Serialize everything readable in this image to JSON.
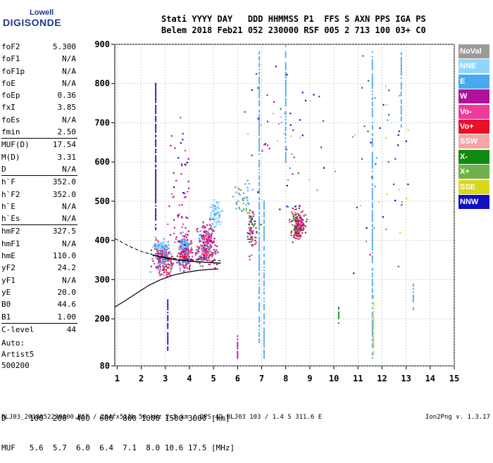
{
  "logo": {
    "top": "Lowell",
    "main": "DIGISONDE"
  },
  "header": {
    "line1": "Stati YYYY DAY   DDD HHMMSS P1  FFS S AXN PPS IGA PS",
    "line2": "Belem 2018 Feb21 052 230000 RSF 005 2 713 100 03+ C0"
  },
  "params": [
    {
      "name": "foF2",
      "value": "5.300"
    },
    {
      "name": "foF1",
      "value": "N/A"
    },
    {
      "name": "foF1p",
      "value": "N/A"
    },
    {
      "name": "foE",
      "value": "N/A"
    },
    {
      "name": "foEp",
      "value": "0.36"
    },
    {
      "name": "fxI",
      "value": "3.85"
    },
    {
      "name": "foEs",
      "value": "N/A"
    },
    {
      "name": "fmin",
      "value": "2.50"
    },
    {
      "name": "MUF(D)",
      "value": "17.54",
      "sep": true
    },
    {
      "name": "M(D)",
      "value": "3.31"
    },
    {
      "name": "D",
      "value": "N/A"
    },
    {
      "name": "h`F",
      "value": "352.0",
      "sep": true
    },
    {
      "name": "h`F2",
      "value": "352.0"
    },
    {
      "name": "h`E",
      "value": "N/A"
    },
    {
      "name": "h`Es",
      "value": "N/A"
    },
    {
      "name": "hmF2",
      "value": "327.5",
      "sep": true
    },
    {
      "name": "hmF1",
      "value": "N/A"
    },
    {
      "name": "hmE",
      "value": "110.0"
    },
    {
      "name": "yF2",
      "value": "24.2"
    },
    {
      "name": "yF1",
      "value": "N/A"
    },
    {
      "name": "yE",
      "value": "20.0"
    },
    {
      "name": "B0",
      "value": "44.6"
    },
    {
      "name": "B1",
      "value": "1.00"
    },
    {
      "name": "C-level",
      "value": "44",
      "sep": true
    }
  ],
  "auto": {
    "line1": "Auto:",
    "line2": "Artist5",
    "line3": "500200"
  },
  "muf_table": {
    "d_line": "D     100  200  400  600  800 1000 1500 3000 [km]",
    "muf_line": "MUF   5.6  5.7  6.0  6.4  7.1  8.0 10.6 17.5 [MHz]"
  },
  "footer": {
    "left": "BLJ03_2018052230000.RSF / 284fx512h 50 kHz 2.5 km / DPS-4D BLJ03 103 / 1.4 S 311.6 E",
    "right": "Ion2Png v. 1.3.17"
  },
  "legend": [
    {
      "label": "NoVal",
      "color": "#9a9a9a"
    },
    {
      "label": "NNE",
      "color": "#8fd6ff"
    },
    {
      "label": "E",
      "color": "#4aa8f0"
    },
    {
      "label": "W",
      "color": "#b0109a"
    },
    {
      "label": "Vo-",
      "color": "#f03a9a"
    },
    {
      "label": "Vo+",
      "color": "#e8102a"
    },
    {
      "label": "SSW",
      "color": "#f4a6a6"
    },
    {
      "label": "X-",
      "color": "#108a10"
    },
    {
      "label": "X+",
      "color": "#6fb04a"
    },
    {
      "label": "SSE",
      "color": "#d8d818"
    },
    {
      "label": "NNW",
      "color": "#1010c0"
    }
  ],
  "chart_data": {
    "type": "scatter",
    "xlim": [
      0.9,
      15
    ],
    "ylim": [
      80,
      900
    ],
    "x_ticks": [
      1,
      2,
      3,
      4,
      5,
      6,
      7,
      8,
      9,
      10,
      11,
      12,
      13,
      14,
      15
    ],
    "y_ticks": [
      80,
      200,
      300,
      400,
      500,
      600,
      700,
      800,
      900
    ],
    "grid": true,
    "legend_position": "right",
    "profile_curve": {
      "x": [
        0.9,
        1.3,
        1.8,
        2.3,
        2.8,
        3.3,
        3.8,
        4.3,
        4.8,
        5.2
      ],
      "y": [
        230,
        245,
        265,
        285,
        300,
        311,
        318,
        323,
        326,
        327.5
      ]
    },
    "dashed_curve": {
      "x": [
        0.9,
        1.5,
        2.0,
        2.5,
        3.0,
        3.5,
        4.0,
        4.5,
        5.0,
        5.3
      ],
      "y": [
        405,
        385,
        372,
        363,
        357,
        353,
        351,
        350,
        349,
        348
      ]
    },
    "solid_trace": {
      "x": [
        2.5,
        3.0,
        3.5,
        4.0,
        4.5,
        5.0,
        5.3
      ],
      "y": [
        362,
        355,
        350,
        347,
        345,
        343,
        342
      ]
    },
    "dot_clusters": [
      {
        "cx": 2.9,
        "cy": 355,
        "sx": 0.35,
        "sy": 35,
        "n": 220,
        "colors": [
          "#b0109a",
          "#f03a9a",
          "#e8102a",
          "#4aa8f0"
        ]
      },
      {
        "cx": 3.8,
        "cy": 365,
        "sx": 0.25,
        "sy": 40,
        "n": 200,
        "colors": [
          "#b0109a",
          "#f03a9a",
          "#e8102a",
          "#4aa8f0"
        ]
      },
      {
        "cx": 4.7,
        "cy": 390,
        "sx": 0.35,
        "sy": 45,
        "n": 240,
        "colors": [
          "#b0109a",
          "#f03a9a",
          "#e8102a",
          "#4aa8f0"
        ]
      },
      {
        "cx": 5.1,
        "cy": 470,
        "sx": 0.2,
        "sy": 30,
        "n": 60,
        "colors": [
          "#4aa8f0",
          "#8fd6ff"
        ]
      },
      {
        "cx": 2.8,
        "cy": 385,
        "sx": 0.25,
        "sy": 6,
        "n": 80,
        "colors": [
          "#4aa8f0",
          "#8fd6ff"
        ]
      },
      {
        "cx": 3.8,
        "cy": 392,
        "sx": 0.15,
        "sy": 8,
        "n": 50,
        "colors": [
          "#4aa8f0",
          "#8fd6ff"
        ]
      },
      {
        "cx": 6.6,
        "cy": 430,
        "sx": 0.15,
        "sy": 50,
        "n": 70,
        "colors": [
          "#b0109a",
          "#f03a9a",
          "#108a10"
        ]
      },
      {
        "cx": 8.5,
        "cy": 440,
        "sx": 0.25,
        "sy": 35,
        "n": 180,
        "colors": [
          "#b0109a",
          "#f03a9a",
          "#e8102a",
          "#108a10"
        ]
      },
      {
        "cx": 6.2,
        "cy": 510,
        "sx": 0.3,
        "sy": 40,
        "n": 40,
        "colors": [
          "#6fb04a",
          "#4aa8f0"
        ]
      },
      {
        "cx": 3.6,
        "cy": 520,
        "sx": 0.4,
        "sy": 140,
        "n": 60,
        "colors": [
          "#b0109a",
          "#1010c0",
          "#f03a9a"
        ]
      },
      {
        "cx": 8,
        "cy": 650,
        "sx": 1.5,
        "sy": 180,
        "n": 60,
        "colors": [
          "#b0109a",
          "#4aa8f0",
          "#108a10",
          "#f4a6a6",
          "#1010c0"
        ]
      },
      {
        "cx": 12,
        "cy": 600,
        "sx": 1.2,
        "sy": 250,
        "n": 50,
        "colors": [
          "#b0109a",
          "#4aa8f0",
          "#108a10",
          "#d8d818",
          "#1010c0"
        ]
      }
    ],
    "vertical_streaks": [
      {
        "x": 6.9,
        "y0": 140,
        "y1": 880,
        "color": "#4aa8f0"
      },
      {
        "x": 7.1,
        "y0": 100,
        "y1": 500,
        "color": "#4aa8f0"
      },
      {
        "x": 11.6,
        "y0": 100,
        "y1": 880,
        "color": "#4aa8f0"
      },
      {
        "x": 11.65,
        "y0": 110,
        "y1": 260,
        "color": "#d8d818"
      },
      {
        "x": 8.0,
        "y0": 600,
        "y1": 900,
        "color": "#4aa8f0"
      },
      {
        "x": 12.8,
        "y0": 690,
        "y1": 880,
        "color": "#4aa8f0"
      },
      {
        "x": 13.3,
        "y0": 220,
        "y1": 290,
        "color": "#4aa8f0"
      },
      {
        "x": 10.2,
        "y0": 185,
        "y1": 230,
        "color": "#108a10"
      },
      {
        "x": 6.0,
        "y0": 100,
        "y1": 160,
        "color": "#b0109a"
      },
      {
        "x": 2.6,
        "y0": 420,
        "y1": 800,
        "color": "#1010c0"
      },
      {
        "x": 3.1,
        "y0": 120,
        "y1": 250,
        "color": "#1010c0"
      }
    ]
  }
}
